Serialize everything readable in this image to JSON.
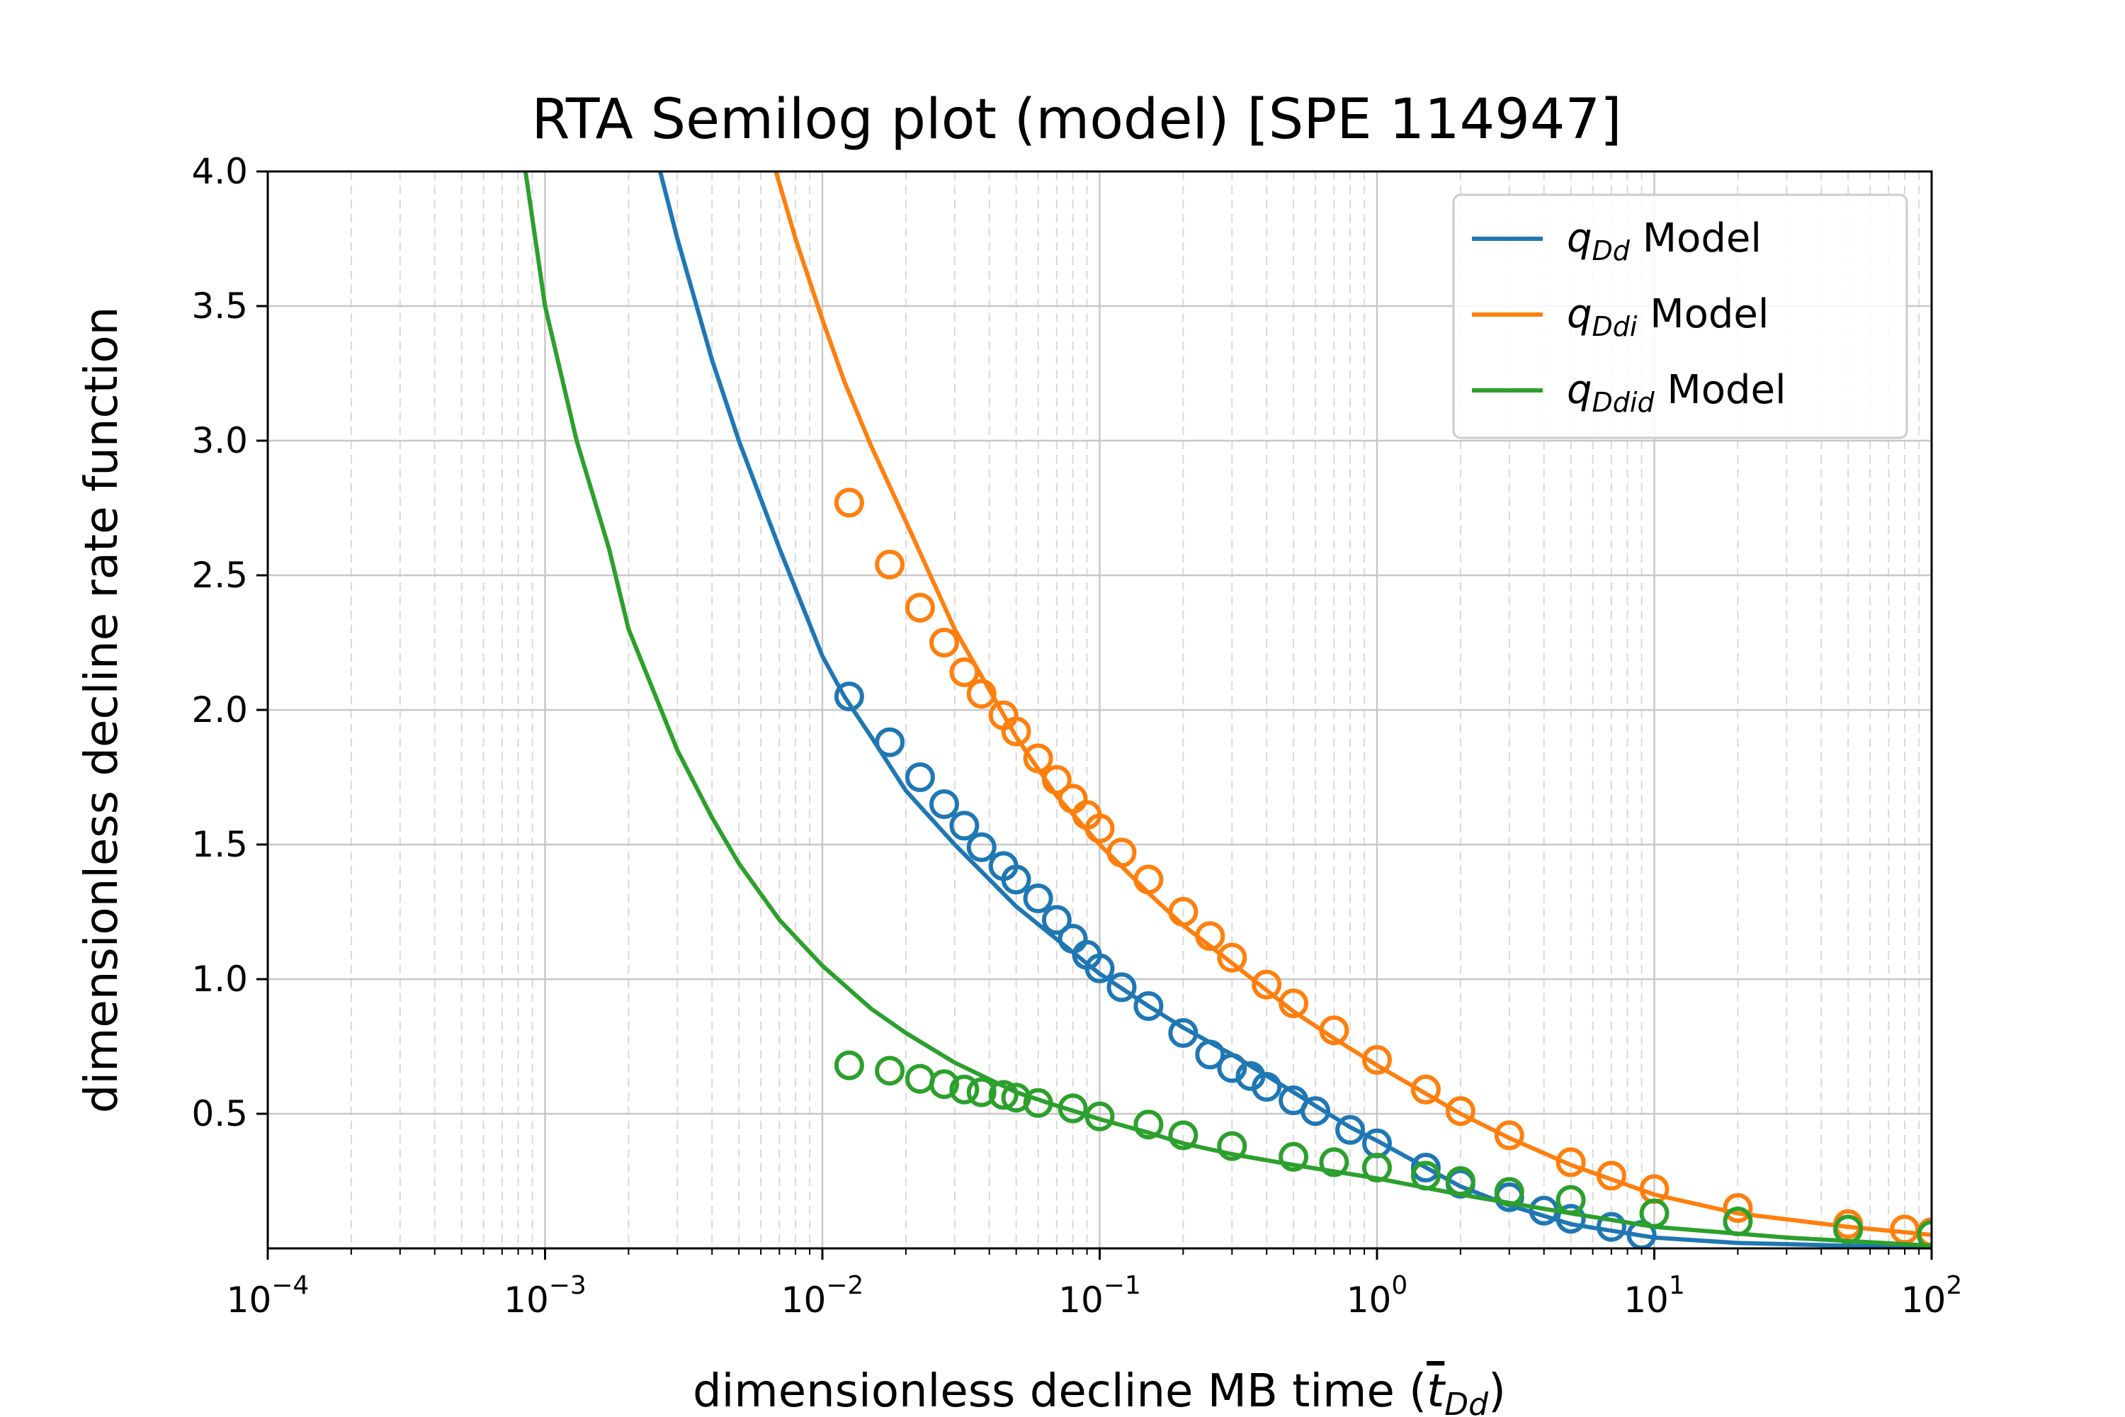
{
  "chart_data": {
    "type": "line",
    "title": "RTA Semilog plot (model) [SPE 114947]",
    "xlabel_text": "dimensionless decline MB time (",
    "xlabel_symbol": "t",
    "xlabel_sub": "Dd",
    "xlabel_close": ")",
    "ylabel": "dimensionless decline rate function",
    "xscale": "log",
    "xlim": [
      0.0001,
      100
    ],
    "ylim": [
      0,
      4.0
    ],
    "grid": true,
    "legend_position": "top-right",
    "x_ticks": [
      {
        "value": 0.0001,
        "base": "10",
        "exp": "−4"
      },
      {
        "value": 0.001,
        "base": "10",
        "exp": "−3"
      },
      {
        "value": 0.01,
        "base": "10",
        "exp": "−2"
      },
      {
        "value": 0.1,
        "base": "10",
        "exp": "−1"
      },
      {
        "value": 1,
        "base": "10",
        "exp": "0"
      },
      {
        "value": 10,
        "base": "10",
        "exp": "1"
      },
      {
        "value": 100,
        "base": "10",
        "exp": "2"
      }
    ],
    "y_ticks": [
      {
        "value": 0.5,
        "label": "0.5"
      },
      {
        "value": 1.0,
        "label": "1.0"
      },
      {
        "value": 1.5,
        "label": "1.5"
      },
      {
        "value": 2.0,
        "label": "2.0"
      },
      {
        "value": 2.5,
        "label": "2.5"
      },
      {
        "value": 3.0,
        "label": "3.0"
      },
      {
        "value": 3.5,
        "label": "3.5"
      },
      {
        "value": 4.0,
        "label": "4.0"
      }
    ],
    "series": [
      {
        "name": "q_Dd Model",
        "legend_symbol": "q",
        "legend_sub": "Dd",
        "legend_rest": " Model",
        "color": "#1f77b4",
        "model_x": [
          0.0026,
          0.003,
          0.004,
          0.005,
          0.007,
          0.01,
          0.012,
          0.015,
          0.02,
          0.03,
          0.05,
          0.08,
          0.1,
          0.15,
          0.2,
          0.3,
          0.5,
          0.8,
          1,
          2,
          3,
          5,
          10,
          20,
          50,
          100
        ],
        "model_y": [
          4.0,
          3.75,
          3.3,
          3.0,
          2.6,
          2.2,
          2.05,
          1.9,
          1.7,
          1.5,
          1.27,
          1.1,
          1.02,
          0.9,
          0.82,
          0.72,
          0.58,
          0.45,
          0.4,
          0.23,
          0.16,
          0.09,
          0.04,
          0.02,
          0.01,
          0.005
        ],
        "data_x": [
          0.0125,
          0.0175,
          0.0225,
          0.0275,
          0.0325,
          0.0375,
          0.045,
          0.05,
          0.06,
          0.07,
          0.08,
          0.09,
          0.1,
          0.12,
          0.15,
          0.2,
          0.25,
          0.3,
          0.35,
          0.4,
          0.5,
          0.6,
          0.8,
          1.0,
          1.5,
          2.0,
          3.0,
          4.0,
          5.0,
          7.0,
          9.0
        ],
        "data_y": [
          2.05,
          1.88,
          1.75,
          1.65,
          1.57,
          1.49,
          1.42,
          1.37,
          1.3,
          1.22,
          1.15,
          1.09,
          1.04,
          0.97,
          0.9,
          0.8,
          0.72,
          0.67,
          0.64,
          0.6,
          0.55,
          0.51,
          0.44,
          0.39,
          0.3,
          0.24,
          0.19,
          0.14,
          0.11,
          0.08,
          0.05
        ]
      },
      {
        "name": "q_Ddi Model",
        "legend_symbol": "q",
        "legend_sub": "Ddi",
        "legend_rest": " Model",
        "color": "#ff7f0e",
        "model_x": [
          0.0068,
          0.008,
          0.01,
          0.012,
          0.015,
          0.02,
          0.03,
          0.05,
          0.07,
          0.1,
          0.15,
          0.2,
          0.3,
          0.5,
          0.7,
          1,
          2,
          3,
          5,
          10,
          20,
          50,
          80,
          100
        ],
        "model_y": [
          4.0,
          3.75,
          3.45,
          3.22,
          2.98,
          2.7,
          2.3,
          1.9,
          1.68,
          1.5,
          1.32,
          1.2,
          1.06,
          0.88,
          0.78,
          0.68,
          0.5,
          0.41,
          0.31,
          0.2,
          0.13,
          0.08,
          0.06,
          0.05
        ],
        "data_x": [
          0.0125,
          0.0175,
          0.0225,
          0.0275,
          0.0325,
          0.0375,
          0.045,
          0.05,
          0.06,
          0.07,
          0.08,
          0.09,
          0.1,
          0.12,
          0.15,
          0.2,
          0.25,
          0.3,
          0.4,
          0.5,
          0.7,
          1.0,
          1.5,
          2.0,
          3.0,
          5.0,
          7.0,
          10.0,
          20.0,
          50.0,
          80.0,
          100.0
        ],
        "data_y": [
          2.77,
          2.54,
          2.38,
          2.25,
          2.14,
          2.06,
          1.98,
          1.92,
          1.82,
          1.74,
          1.67,
          1.61,
          1.56,
          1.47,
          1.37,
          1.25,
          1.16,
          1.08,
          0.98,
          0.91,
          0.81,
          0.7,
          0.59,
          0.51,
          0.42,
          0.32,
          0.27,
          0.22,
          0.15,
          0.09,
          0.07,
          0.06
        ]
      },
      {
        "name": "q_Ddid Model",
        "legend_symbol": "q",
        "legend_sub": "Ddid",
        "legend_rest": " Model",
        "color": "#2ca02c",
        "model_x": [
          0.00085,
          0.001,
          0.0013,
          0.0017,
          0.002,
          0.003,
          0.004,
          0.005,
          0.007,
          0.01,
          0.015,
          0.02,
          0.03,
          0.05,
          0.07,
          0.1,
          0.15,
          0.2,
          0.3,
          0.5,
          1,
          2,
          5,
          10,
          30,
          100
        ],
        "model_y": [
          4.0,
          3.5,
          3.0,
          2.6,
          2.3,
          1.85,
          1.6,
          1.43,
          1.22,
          1.05,
          0.89,
          0.8,
          0.69,
          0.58,
          0.53,
          0.48,
          0.43,
          0.39,
          0.35,
          0.31,
          0.26,
          0.2,
          0.13,
          0.08,
          0.04,
          0.01
        ],
        "data_x": [
          0.0125,
          0.0175,
          0.0225,
          0.0275,
          0.0325,
          0.0375,
          0.045,
          0.05,
          0.06,
          0.08,
          0.1,
          0.15,
          0.2,
          0.3,
          0.5,
          0.7,
          1.0,
          1.5,
          2.0,
          3.0,
          5.0,
          10.0,
          20.0,
          50.0,
          100.0
        ],
        "data_y": [
          0.68,
          0.66,
          0.63,
          0.61,
          0.59,
          0.58,
          0.57,
          0.56,
          0.54,
          0.52,
          0.49,
          0.46,
          0.42,
          0.38,
          0.34,
          0.32,
          0.3,
          0.27,
          0.25,
          0.21,
          0.18,
          0.13,
          0.1,
          0.07,
          0.05
        ]
      }
    ]
  }
}
